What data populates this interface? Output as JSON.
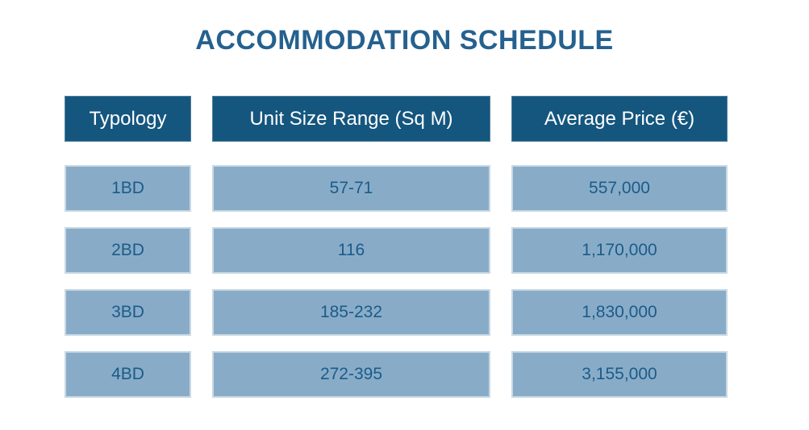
{
  "title": "ACCOMMODATION SCHEDULE",
  "table": {
    "columns": [
      "Typology",
      "Unit Size Range (Sq M)",
      "Average Price (€)"
    ],
    "rows": [
      [
        "1BD",
        "57-71",
        "557,000"
      ],
      [
        "2BD",
        "116",
        "1,170,000"
      ],
      [
        "3BD",
        "185-232",
        "1,830,000"
      ],
      [
        "4BD",
        "272-395",
        "3,155,000"
      ]
    ]
  },
  "chart_data": {
    "type": "table",
    "title": "ACCOMMODATION SCHEDULE",
    "columns": [
      "Typology",
      "Unit Size Range (Sq M)",
      "Average Price (€)"
    ],
    "rows": [
      {
        "typology": "1BD",
        "unit_size_range_sqm": "57-71",
        "average_price_eur": 557000
      },
      {
        "typology": "2BD",
        "unit_size_range_sqm": "116",
        "average_price_eur": 1170000
      },
      {
        "typology": "3BD",
        "unit_size_range_sqm": "185-232",
        "average_price_eur": 1830000
      },
      {
        "typology": "4BD",
        "unit_size_range_sqm": "272-395",
        "average_price_eur": 3155000
      }
    ]
  },
  "colors": {
    "background": "#FFFFFF",
    "title_text": "#25618F",
    "header_bg": "#15567E",
    "header_text": "#FFFFFF",
    "cell_bg": "#88ACC8",
    "cell_border": "#C9D9E4",
    "cell_text": "#1C5B89"
  }
}
